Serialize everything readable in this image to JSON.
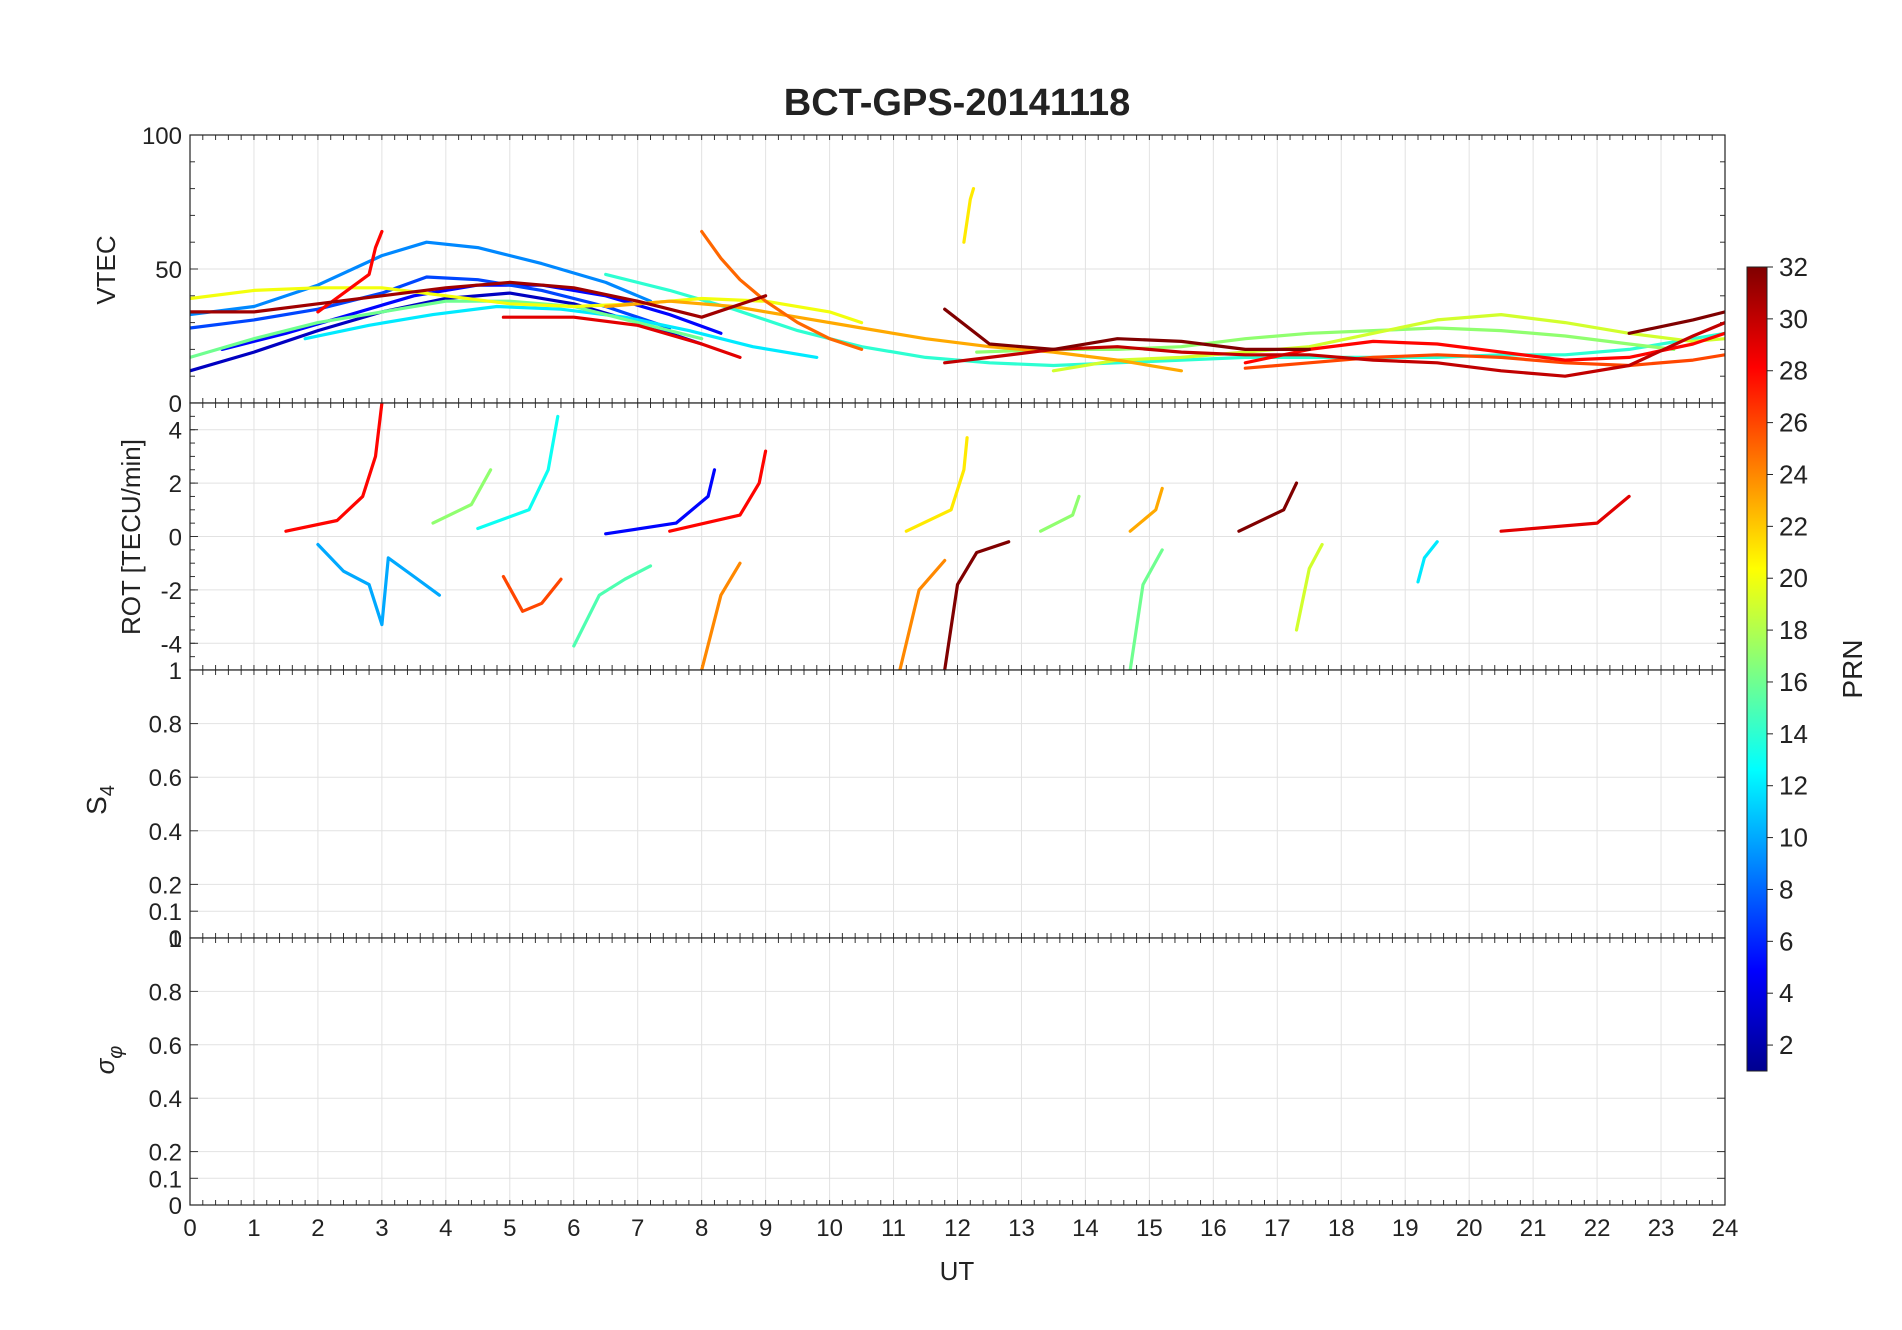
{
  "title": "BCT-GPS-20141118",
  "colorbar": {
    "label": "PRN",
    "ticks": [
      "2",
      "4",
      "6",
      "8",
      "10",
      "12",
      "14",
      "16",
      "18",
      "20",
      "22",
      "24",
      "26",
      "28",
      "30",
      "32"
    ],
    "range": [
      1,
      32
    ],
    "colormap": "jet"
  },
  "chart_data": [
    {
      "type": "line",
      "panel": "VTEC",
      "ylabel": "VTEC",
      "xlim": [
        0,
        24
      ],
      "ylim": [
        0,
        100
      ],
      "yticks": [
        0,
        50,
        100
      ],
      "grid": true,
      "x_ticks": [
        0,
        1,
        2,
        3,
        4,
        5,
        6,
        7,
        8,
        9,
        10,
        11,
        12,
        13,
        14,
        15,
        16,
        17,
        18,
        19,
        20,
        21,
        22,
        23,
        24
      ],
      "series": [
        {
          "prn": 3,
          "x": [
            0,
            1,
            2,
            3,
            4,
            5,
            6,
            7,
            8
          ],
          "y": [
            12,
            19,
            27,
            34,
            39,
            41,
            37,
            30,
            22
          ]
        },
        {
          "prn": 5,
          "x": [
            0.5,
            1.5,
            2.5,
            3.5,
            4.5,
            5.5,
            6.5,
            7.5,
            8.3
          ],
          "y": [
            20,
            26,
            33,
            40,
            44,
            44,
            40,
            33,
            26
          ]
        },
        {
          "prn": 7,
          "x": [
            0,
            1,
            2,
            3,
            3.7,
            4.5,
            5.5,
            6.5,
            7.5
          ],
          "y": [
            28,
            31,
            35,
            41,
            47,
            46,
            42,
            36,
            28
          ]
        },
        {
          "prn": 9,
          "x": [
            0,
            1,
            2,
            3,
            3.7,
            4.5,
            5.5,
            6.5,
            7.2
          ],
          "y": [
            33,
            36,
            44,
            55,
            60,
            58,
            52,
            45,
            38
          ]
        },
        {
          "prn": 12,
          "x": [
            1.8,
            2.8,
            3.8,
            4.8,
            5.8,
            6.8,
            7.8,
            8.8,
            9.8
          ],
          "y": [
            24,
            29,
            33,
            36,
            35,
            32,
            27,
            21,
            17
          ]
        },
        {
          "prn": 14,
          "x": [
            6.5,
            7.5,
            8.5,
            9.5,
            10.5,
            11.5,
            12.5,
            13.5,
            14.5,
            15.5,
            16.5,
            17.5,
            18.5,
            19.5,
            20.5,
            21.5,
            22.5,
            23.5,
            24
          ],
          "y": [
            48,
            42,
            35,
            27,
            21,
            17,
            15,
            14,
            15,
            16,
            17,
            17,
            17,
            17,
            18,
            18,
            20,
            24,
            26
          ]
        },
        {
          "prn": 16,
          "x": [
            0,
            1,
            2,
            3,
            4,
            5,
            6,
            7,
            8
          ],
          "y": [
            17,
            24,
            30,
            34,
            38,
            38,
            36,
            30,
            24
          ]
        },
        {
          "prn": 17,
          "x": [
            12.3,
            13.5,
            14.5,
            15.5,
            16.5,
            17.5,
            18.5,
            19.5,
            20.5,
            21.5,
            22.5,
            23.2
          ],
          "y": [
            19,
            20,
            20,
            21,
            24,
            26,
            27,
            28,
            27,
            25,
            22,
            20
          ]
        },
        {
          "prn": 19,
          "x": [
            13.5,
            14.5,
            15.5,
            16.5,
            17.5,
            18.5,
            19.5,
            20.5,
            21.5,
            22.5,
            23.5,
            24
          ],
          "y": [
            12,
            16,
            17,
            19,
            21,
            26,
            31,
            33,
            30,
            26,
            23,
            24
          ]
        },
        {
          "prn": 20,
          "x": [
            0,
            1,
            2,
            3,
            4,
            5,
            6,
            7,
            8,
            9,
            10,
            10.5
          ],
          "y": [
            39,
            42,
            43,
            43,
            40,
            37,
            36,
            37,
            39,
            38,
            34,
            30
          ]
        },
        {
          "prn": 21,
          "x": [
            12.1,
            12.15,
            12.2,
            12.25
          ],
          "y": [
            60,
            68,
            76,
            80
          ]
        },
        {
          "prn": 23,
          "x": [
            6.5,
            7.5,
            8.5,
            9.5,
            10.5,
            11.5,
            12.5,
            13.5,
            14.5,
            15.5
          ],
          "y": [
            36,
            38,
            36,
            32,
            28,
            24,
            21,
            19,
            16,
            12
          ]
        },
        {
          "prn": 25,
          "x": [
            8,
            8.3,
            8.6,
            9,
            9.5,
            10,
            10.5
          ],
          "y": [
            64,
            54,
            46,
            38,
            30,
            24,
            20
          ]
        },
        {
          "prn": 26,
          "x": [
            16.5,
            17.5,
            18.5,
            19.5,
            20.5,
            21.5,
            22.5,
            23.5,
            24
          ],
          "y": [
            13,
            15,
            17,
            18,
            17,
            15,
            14,
            16,
            18
          ]
        },
        {
          "prn": 28,
          "x": [
            2,
            2.8,
            2.9,
            3.0
          ],
          "y": [
            34,
            48,
            58,
            64
          ]
        },
        {
          "prn": 28,
          "x": [
            16.5,
            17.5,
            18.5,
            19.5,
            20.5,
            21.5,
            22.5,
            23.5,
            24
          ],
          "y": [
            15,
            20,
            23,
            22,
            19,
            16,
            17,
            22,
            26
          ]
        },
        {
          "prn": 29,
          "x": [
            4.9,
            6,
            7,
            8,
            8.6
          ],
          "y": [
            32,
            32,
            29,
            22,
            17
          ]
        },
        {
          "prn": 30,
          "x": [
            11.8,
            12.5,
            13.5,
            14.5,
            15.5,
            16.5,
            17.5,
            18.5,
            19.5,
            20.5,
            21.5,
            22.5,
            23.5,
            24
          ],
          "y": [
            15,
            17,
            20,
            21,
            19,
            18,
            18,
            16,
            15,
            12,
            10,
            14,
            25,
            30
          ]
        },
        {
          "prn": 31,
          "x": [
            0,
            1,
            2,
            3,
            4,
            5,
            6,
            7,
            8,
            9
          ],
          "y": [
            34,
            34,
            37,
            40,
            43,
            45,
            43,
            38,
            32,
            40
          ]
        },
        {
          "prn": 32,
          "x": [
            11.8,
            12.5,
            13.5,
            14.5,
            15.5,
            16.5,
            17.5
          ],
          "y": [
            35,
            22,
            20,
            24,
            23,
            20,
            20
          ]
        },
        {
          "prn": 32,
          "x": [
            22.5,
            23.5,
            24
          ],
          "y": [
            26,
            31,
            34
          ]
        }
      ]
    },
    {
      "type": "line",
      "panel": "ROT",
      "ylabel": "ROT [TECU/min]",
      "xlim": [
        0,
        24
      ],
      "ylim": [
        -5,
        5
      ],
      "yticks": [
        -4,
        -2,
        0,
        2,
        4
      ],
      "grid": true,
      "series": [
        {
          "prn": 28,
          "x": [
            1.5,
            2.3,
            2.7,
            2.9,
            3.0
          ],
          "y": [
            0.2,
            0.6,
            1.5,
            3,
            5
          ]
        },
        {
          "prn": 17,
          "x": [
            3.8,
            4.4,
            4.7
          ],
          "y": [
            0.5,
            1.2,
            2.5
          ]
        },
        {
          "prn": 13,
          "x": [
            4.5,
            5.3,
            5.6,
            5.75
          ],
          "y": [
            0.3,
            1,
            2.5,
            4.5
          ]
        },
        {
          "prn": 5,
          "x": [
            6.5,
            7.6,
            8.1,
            8.2
          ],
          "y": [
            0.1,
            0.5,
            1.5,
            2.5
          ]
        },
        {
          "prn": 28,
          "x": [
            7.5,
            8.6,
            8.9,
            9.0
          ],
          "y": [
            0.2,
            0.8,
            2,
            3.2
          ]
        },
        {
          "prn": 21,
          "x": [
            11.2,
            11.9,
            12.1,
            12.15
          ],
          "y": [
            0.2,
            1,
            2.5,
            3.7
          ]
        },
        {
          "prn": 17,
          "x": [
            13.3,
            13.8,
            13.9
          ],
          "y": [
            0.2,
            0.8,
            1.5
          ]
        },
        {
          "prn": 23,
          "x": [
            14.7,
            15.1,
            15.2
          ],
          "y": [
            0.2,
            1,
            1.8
          ]
        },
        {
          "prn": 32,
          "x": [
            16.4,
            17.1,
            17.3
          ],
          "y": [
            0.2,
            1,
            2
          ]
        },
        {
          "prn": 29,
          "x": [
            20.5,
            22.0,
            22.5
          ],
          "y": [
            0.2,
            0.5,
            1.5
          ]
        },
        {
          "prn": 10,
          "x": [
            2.0,
            2.4,
            2.8,
            3.0,
            3.1,
            3.5,
            3.9
          ],
          "y": [
            -0.3,
            -1.3,
            -1.8,
            -3.3,
            -0.8,
            -1.5,
            -2.2
          ]
        },
        {
          "prn": 26,
          "x": [
            4.9,
            5.2,
            5.5,
            5.8
          ],
          "y": [
            -1.5,
            -2.8,
            -2.5,
            -1.6
          ]
        },
        {
          "prn": 15,
          "x": [
            6.0,
            6.4,
            6.8,
            7.2
          ],
          "y": [
            -4.1,
            -2.2,
            -1.6,
            -1.1
          ]
        },
        {
          "prn": 24,
          "x": [
            8.0,
            8.3,
            8.6
          ],
          "y": [
            -5,
            -2.2,
            -1
          ]
        },
        {
          "prn": 24,
          "x": [
            11.1,
            11.4,
            11.8
          ],
          "y": [
            -5,
            -2,
            -0.9
          ]
        },
        {
          "prn": 32,
          "x": [
            11.8,
            12.0,
            12.3,
            12.8
          ],
          "y": [
            -5,
            -1.8,
            -0.6,
            -0.2
          ]
        },
        {
          "prn": 16,
          "x": [
            14.7,
            14.9,
            15.2
          ],
          "y": [
            -5,
            -1.8,
            -0.5
          ]
        },
        {
          "prn": 19,
          "x": [
            17.3,
            17.5,
            17.7
          ],
          "y": [
            -3.5,
            -1.2,
            -0.3
          ]
        },
        {
          "prn": 12,
          "x": [
            19.2,
            19.3,
            19.5
          ],
          "y": [
            -1.7,
            -0.8,
            -0.2
          ]
        }
      ]
    },
    {
      "type": "line",
      "panel": "S4",
      "ylabel": "S4",
      "xlim": [
        0,
        24
      ],
      "ylim": [
        0,
        1
      ],
      "yticks": [
        "0",
        "0.1",
        "0.2",
        "0.4",
        "0.6",
        "0.8",
        "1"
      ],
      "grid": true
    },
    {
      "type": "line",
      "panel": "sigma_phi",
      "ylabel": "σφ",
      "xlabel": "UT",
      "xlim": [
        0,
        24
      ],
      "ylim": [
        0,
        1
      ],
      "yticks": [
        "0",
        "0.1",
        "0.2",
        "0.4",
        "0.6",
        "0.8",
        "1"
      ],
      "grid": true
    }
  ]
}
